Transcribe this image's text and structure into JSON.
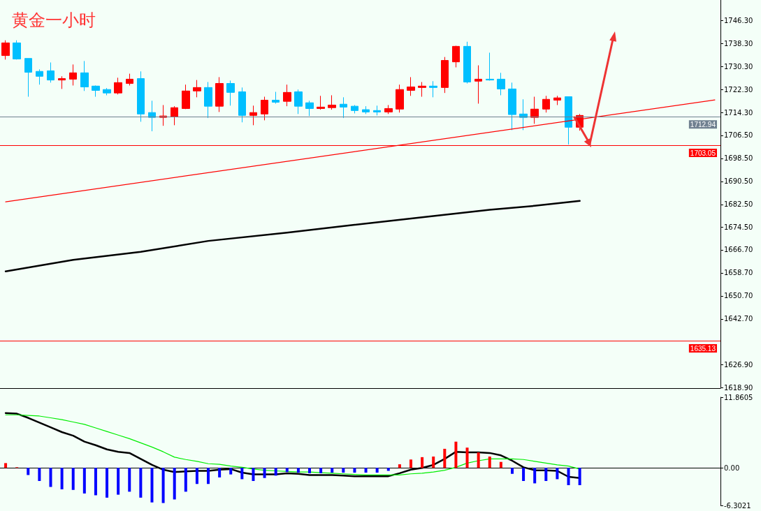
{
  "chart_data": [
    {
      "type": "candlestick",
      "title": "黄金一小时",
      "categories": [
        null,
        null,
        null,
        null,
        null,
        null,
        null,
        null,
        null,
        null,
        null,
        null,
        null,
        null,
        null,
        null,
        null,
        null,
        null,
        null,
        null,
        null,
        null,
        null,
        null,
        null,
        null,
        null,
        null,
        null,
        null,
        null,
        null,
        null,
        null,
        null,
        null,
        null,
        null,
        null,
        null,
        null,
        null,
        null,
        null,
        null,
        null,
        null,
        null,
        null,
        null,
        null,
        null,
        null,
        null,
        null,
        null,
        null,
        null,
        null,
        null,
        null,
        null,
        null
      ],
      "ohlc": [
        [
          1734.2,
          1739.5,
          1732.8,
          1738.6
        ],
        [
          1738.6,
          1739.5,
          1732.8,
          1733.0
        ],
        [
          1733.2,
          1733.2,
          1719.9,
          1728.4
        ],
        [
          1728.7,
          1729.4,
          1724.1,
          1727.0
        ],
        [
          1728.9,
          1731.8,
          1724.8,
          1725.7
        ],
        [
          1725.7,
          1727.0,
          1722.6,
          1726.2
        ],
        [
          1726.0,
          1731.1,
          1723.8,
          1728.2
        ],
        [
          1728.2,
          1732.3,
          1721.9,
          1723.3
        ],
        [
          1723.6,
          1723.8,
          1719.9,
          1722.1
        ],
        [
          1722.4,
          1722.9,
          1720.4,
          1721.2
        ],
        [
          1721.2,
          1726.5,
          1720.7,
          1724.8
        ],
        [
          1724.5,
          1727.9,
          1723.8,
          1726.0
        ],
        [
          1726.2,
          1728.7,
          1711.2,
          1713.9
        ],
        [
          1714.4,
          1718.5,
          1707.9,
          1712.7
        ],
        [
          1712.7,
          1717.0,
          1709.8,
          1713.2
        ],
        [
          1712.9,
          1716.6,
          1710.0,
          1716.1
        ],
        [
          1715.8,
          1724.1,
          1715.6,
          1721.9
        ],
        [
          1721.9,
          1725.7,
          1719.7,
          1723.1
        ],
        [
          1723.1,
          1725.0,
          1712.5,
          1716.6
        ],
        [
          1716.6,
          1726.7,
          1714.6,
          1724.5
        ],
        [
          1724.5,
          1725.5,
          1716.8,
          1721.4
        ],
        [
          1721.6,
          1723.1,
          1711.0,
          1713.4
        ],
        [
          1713.4,
          1716.8,
          1710.0,
          1714.4
        ],
        [
          1713.9,
          1719.9,
          1711.7,
          1718.7
        ],
        [
          1718.7,
          1721.6,
          1717.5,
          1718.0
        ],
        [
          1718.3,
          1724.1,
          1716.6,
          1721.4
        ],
        [
          1721.6,
          1722.4,
          1713.9,
          1716.6
        ],
        [
          1717.8,
          1718.5,
          1713.2,
          1715.8
        ],
        [
          1715.8,
          1720.2,
          1715.4,
          1716.3
        ],
        [
          1716.1,
          1720.4,
          1715.4,
          1717.0
        ],
        [
          1717.3,
          1719.7,
          1712.5,
          1716.3
        ],
        [
          1716.6,
          1717.0,
          1714.1,
          1715.1
        ],
        [
          1715.4,
          1716.6,
          1713.9,
          1714.6
        ],
        [
          1715.1,
          1716.8,
          1713.4,
          1714.6
        ],
        [
          1714.6,
          1717.0,
          1713.9,
          1715.8
        ],
        [
          1715.6,
          1724.1,
          1714.4,
          1722.4
        ],
        [
          1722.1,
          1726.7,
          1720.2,
          1723.3
        ],
        [
          1723.1,
          1725.0,
          1719.9,
          1723.6
        ],
        [
          1723.6,
          1725.3,
          1719.7,
          1723.1
        ],
        [
          1723.1,
          1733.7,
          1721.2,
          1732.5
        ],
        [
          1732.0,
          1737.6,
          1730.1,
          1737.4
        ],
        [
          1737.4,
          1739.0,
          1724.5,
          1725.0
        ],
        [
          1725.3,
          1730.8,
          1717.5,
          1726.0
        ],
        [
          1726.0,
          1735.2,
          1725.5,
          1725.7
        ],
        [
          1726.0,
          1728.2,
          1720.4,
          1722.6
        ],
        [
          1722.6,
          1724.8,
          1708.3,
          1713.7
        ],
        [
          1713.9,
          1719.0,
          1708.3,
          1712.7
        ],
        [
          1712.7,
          1719.9,
          1710.5,
          1715.6
        ],
        [
          1715.6,
          1720.2,
          1714.4,
          1719.0
        ],
        [
          1718.7,
          1720.2,
          1717.0,
          1719.5
        ],
        [
          1719.9,
          1719.9,
          1703.3,
          1709.3
        ],
        [
          1709.3,
          1713.9,
          1708.1,
          1713.4
        ],
        null,
        null,
        null,
        null,
        null,
        null,
        null,
        null,
        null,
        null,
        null,
        null
      ],
      "colors": [
        "#ff0000",
        "#00bfff",
        "#00bfff",
        "#00bfff",
        "#00bfff",
        "#ff0000",
        "#ff0000",
        "#00bfff",
        "#00bfff",
        "#00bfff",
        "#ff0000",
        "#ff0000",
        "#00bfff",
        "#00bfff",
        "#ff0000",
        "#ff0000",
        "#ff0000",
        "#ff0000",
        "#00bfff",
        "#ff0000",
        "#00bfff",
        "#00bfff",
        "#ff0000",
        "#ff0000",
        "#00bfff",
        "#ff0000",
        "#00bfff",
        "#00bfff",
        "#ff0000",
        "#ff0000",
        "#00bfff",
        "#00bfff",
        "#00bfff",
        "#00bfff",
        "#ff0000",
        "#ff0000",
        "#ff0000",
        "#ff0000",
        "#00bfff",
        "#ff0000",
        "#ff0000",
        "#00bfff",
        "#ff0000",
        "#00bfff",
        "#00bfff",
        "#00bfff",
        "#00bfff",
        "#ff0000",
        "#ff0000",
        "#ff0000",
        "#00bfff",
        "#ff0000",
        null,
        null,
        null,
        null,
        null,
        null,
        null,
        null,
        null,
        null,
        null,
        null
      ],
      "series": [
        {
          "type": "line",
          "color": "#000000",
          "values": [
            1659.2,
            null,
            null,
            null,
            null,
            null,
            1663.2,
            null,
            null,
            null,
            null,
            null,
            1666.0,
            null,
            null,
            null,
            null,
            null,
            1669.8,
            null,
            null,
            null,
            null,
            null,
            null,
            1672.7,
            null,
            null,
            null,
            null,
            null,
            1675.4,
            null,
            null,
            null,
            null,
            null,
            1678.0,
            null,
            null,
            null,
            null,
            null,
            1680.6,
            null,
            null,
            null,
            1682.0,
            null,
            null,
            null,
            1683.7,
            null,
            null,
            null,
            null,
            null,
            null,
            null,
            null,
            null,
            null,
            null,
            null
          ]
        },
        {
          "type": "line",
          "color": "#ff0000",
          "values": [
            1683.4,
            null,
            null,
            null,
            null,
            null,
            null,
            null,
            null,
            null,
            null,
            null,
            null,
            null,
            null,
            null,
            null,
            null,
            null,
            null,
            null,
            null,
            null,
            null,
            null,
            null,
            null,
            null,
            null,
            null,
            null,
            null,
            null,
            null,
            null,
            null,
            null,
            null,
            null,
            null,
            null,
            null,
            null,
            null,
            null,
            null,
            null,
            null,
            null,
            null,
            null,
            null,
            null,
            null,
            null,
            null,
            null,
            null,
            null,
            null,
            null,
            null,
            null,
            1718.8
          ]
        }
      ],
      "ylim": [
        1618.7,
        1753.5
      ],
      "yticks": [
        {
          "value": 1746.3,
          "label": "1746.30"
        },
        {
          "value": 1738.3,
          "label": "1738.30"
        },
        {
          "value": 1730.3,
          "label": "1730.30"
        },
        {
          "value": 1722.3,
          "label": "1722.30"
        },
        {
          "value": 1714.3,
          "label": "1714.30"
        },
        {
          "value": 1706.5,
          "label": "1706.50"
        },
        {
          "value": 1698.5,
          "label": "1698.50"
        },
        {
          "value": 1690.5,
          "label": "1690.50"
        },
        {
          "value": 1682.5,
          "label": "1682.50"
        },
        {
          "value": 1674.5,
          "label": "1674.50"
        },
        {
          "value": 1666.7,
          "label": "1666.70"
        },
        {
          "value": 1658.7,
          "label": "1658.70"
        },
        {
          "value": 1650.7,
          "label": "1650.70"
        },
        {
          "value": 1642.7,
          "label": "1642.70"
        },
        {
          "value": 1626.9,
          "label": "1626.90"
        },
        {
          "value": 1618.9,
          "label": "1618.90"
        }
      ],
      "ref_lines": [
        {
          "axis": "y",
          "value": 1712.94,
          "label": "1712.94",
          "color": "#708090"
        },
        {
          "axis": "y",
          "value": 1703.05,
          "label": "1703.05",
          "color": "#ff0000"
        },
        {
          "axis": "y",
          "value": 1635.13,
          "label": "1635.13",
          "color": "#ff0000"
        }
      ],
      "marker": "none",
      "tick_labels": "y"
    },
    {
      "type": "bar",
      "categories": [
        null,
        null,
        null,
        null,
        null,
        null,
        null,
        null,
        null,
        null,
        null,
        null,
        null,
        null,
        null,
        null,
        null,
        null,
        null,
        null,
        null,
        null,
        null,
        null,
        null,
        null,
        null,
        null,
        null,
        null,
        null,
        null,
        null,
        null,
        null,
        null,
        null,
        null,
        null,
        null,
        null,
        null,
        null,
        null,
        null,
        null,
        null,
        null,
        null,
        null,
        null,
        null,
        null,
        null,
        null,
        null,
        null,
        null,
        null,
        null,
        null,
        null,
        null,
        null
      ],
      "series": [
        {
          "values": [
            0.8,
            0.1,
            -1.2,
            -2.2,
            -3.2,
            -3.6,
            -3.7,
            -4.3,
            -4.6,
            -5.0,
            -4.5,
            -4.0,
            -5.0,
            -5.8,
            -5.9,
            -5.3,
            -4.0,
            -2.7,
            -2.7,
            -1.6,
            -1.1,
            -1.9,
            -2.2,
            -1.7,
            -1.3,
            -0.7,
            -0.8,
            -0.9,
            -0.9,
            -0.8,
            -0.8,
            -0.8,
            -0.8,
            -0.8,
            -0.5,
            0.6,
            1.4,
            1.8,
            1.9,
            3.2,
            4.4,
            3.4,
            2.6,
            1.9,
            1.0,
            -1.0,
            -2.2,
            -2.6,
            -2.2,
            -1.9,
            -2.9,
            -2.9,
            null,
            null,
            null,
            null,
            null,
            null,
            null,
            null,
            null,
            null,
            null,
            null
          ],
          "colors": [
            "#ff0000",
            "#ff0000",
            "#0000ff",
            "#0000ff",
            "#0000ff",
            "#0000ff",
            "#0000ff",
            "#0000ff",
            "#0000ff",
            "#0000ff",
            "#0000ff",
            "#0000ff",
            "#0000ff",
            "#0000ff",
            "#0000ff",
            "#0000ff",
            "#0000ff",
            "#0000ff",
            "#0000ff",
            "#0000ff",
            "#0000ff",
            "#0000ff",
            "#0000ff",
            "#0000ff",
            "#0000ff",
            "#0000ff",
            "#0000ff",
            "#0000ff",
            "#0000ff",
            "#0000ff",
            "#0000ff",
            "#0000ff",
            "#0000ff",
            "#0000ff",
            "#0000ff",
            "#ff0000",
            "#ff0000",
            "#ff0000",
            "#ff0000",
            "#ff0000",
            "#ff0000",
            "#ff0000",
            "#ff0000",
            "#ff0000",
            "#ff0000",
            "#0000ff",
            "#0000ff",
            "#0000ff",
            "#0000ff",
            "#0000ff",
            "#0000ff",
            "#0000ff",
            null,
            null,
            null,
            null,
            null,
            null,
            null,
            null,
            null,
            null,
            null,
            null
          ]
        },
        {
          "type": "line",
          "color": "#000000",
          "values": [
            9.2,
            9.1,
            8.4,
            7.6,
            6.8,
            6.0,
            5.4,
            4.4,
            3.8,
            3.1,
            2.7,
            2.5,
            1.5,
            0.5,
            -0.3,
            -0.7,
            -0.6,
            -0.5,
            -0.5,
            -0.3,
            -0.2,
            -0.8,
            -1.1,
            -1.1,
            -1.1,
            -0.9,
            -1.0,
            -1.2,
            -1.2,
            -1.2,
            -1.3,
            -1.4,
            -1.4,
            -1.4,
            -1.4,
            -0.9,
            -0.3,
            0.0,
            0.5,
            1.5,
            2.7,
            2.6,
            2.6,
            2.5,
            2.1,
            1.2,
            0.1,
            -0.4,
            -0.4,
            -0.5,
            -1.5,
            -1.7,
            null,
            null,
            null,
            null,
            null,
            null,
            null,
            null,
            null,
            null,
            null,
            null
          ]
        },
        {
          "type": "line",
          "color": "#00ee00",
          "values": [
            8.9,
            8.9,
            8.8,
            8.7,
            8.4,
            8.1,
            7.7,
            7.3,
            6.7,
            6.1,
            5.5,
            4.9,
            4.2,
            3.5,
            2.7,
            1.8,
            1.4,
            1.1,
            0.7,
            0.6,
            0.3,
            0.1,
            -0.2,
            -0.4,
            -0.5,
            -0.6,
            -0.7,
            -0.7,
            -0.8,
            -0.9,
            -1.0,
            -1.1,
            -1.2,
            -1.2,
            -1.2,
            -1.2,
            -1.0,
            -0.9,
            -0.7,
            -0.4,
            0.1,
            0.8,
            1.2,
            1.5,
            1.5,
            1.5,
            1.4,
            1.1,
            0.8,
            0.5,
            0.3,
            -0.2,
            null,
            null,
            null,
            null,
            null,
            null,
            null,
            null,
            null,
            null,
            null,
            null
          ]
        }
      ],
      "ylim": [
        -6.3021,
        11.8605
      ],
      "yticks": [
        11.8605,
        {
          "value": 0,
          "label": "0.00"
        },
        -6.3021
      ],
      "marker": "none",
      "tick_labels": "y"
    }
  ]
}
